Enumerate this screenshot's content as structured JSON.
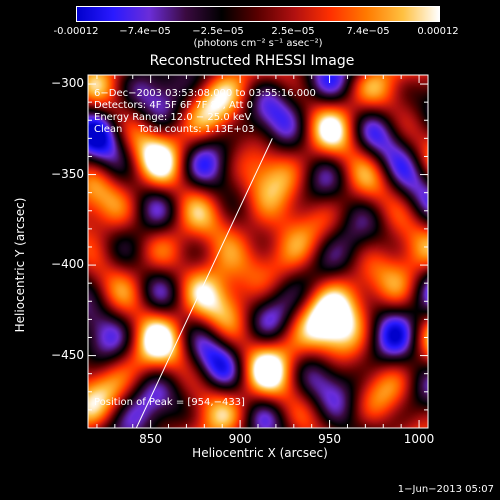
{
  "colorbar": {
    "tick_labels": [
      "-0.00012",
      "−7.4e−05",
      "−2.5e−05",
      "2.5e−05",
      "7.4e−05",
      "0.00012"
    ],
    "unit_text": "(photons cm⁻² s⁻¹ asec⁻²)",
    "stops": [
      "#0000cc",
      "#2a1aff",
      "#6b2dd8",
      "#3a0a40",
      "#000000",
      "#5a0000",
      "#b01010",
      "#ff3000",
      "#ff7a00",
      "#ffc040",
      "#ffffff"
    ]
  },
  "title": "Reconstructed RHESSI Image",
  "info": {
    "line1": "6−Dec−2003 03:53:08.000 to 03:55:16.000",
    "line2": "Detectors: 4F 5F 6F 7F 8F, Att 0",
    "line3": "Energy Range: 12.0 − 25.0 keV",
    "line4": "Clean     Total counts: 1.13E+03",
    "peak": "Position of Peak = [954,−433]"
  },
  "footer": "1−Jun−2013 05:07",
  "chart_data": {
    "type": "heatmap",
    "title": "Reconstructed RHESSI Image",
    "xlabel": "Heliocentric X (arcsec)",
    "ylabel": "Heliocentric Y (arcsec)",
    "xlim": [
      815,
      1005
    ],
    "ylim": [
      -490,
      -295
    ],
    "x_ticks": [
      850,
      900,
      950,
      1000
    ],
    "y_ticks": [
      -300,
      -350,
      -400,
      -450
    ],
    "x_tick_labels": [
      "850",
      "900",
      "950",
      "1000"
    ],
    "y_tick_labels": [
      "−300",
      "−350",
      "−400",
      "−450"
    ],
    "colorbar_range": [
      -0.00012,
      0.00012
    ],
    "peak_position": [
      954,
      -433
    ],
    "limb_line": {
      "x": [
        842,
        918
      ],
      "y": [
        -490,
        -330
      ]
    }
  }
}
